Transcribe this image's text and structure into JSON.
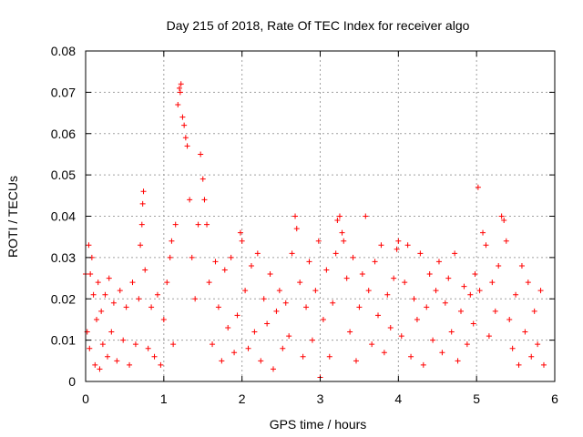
{
  "chart_data": {
    "type": "scatter",
    "title": "Day 215 of 2018, Rate Of TEC Index for receiver algo",
    "xlabel": "GPS time / hours",
    "ylabel": "ROTI / TECUs",
    "xlim": [
      0,
      6
    ],
    "ylim": [
      0,
      0.08
    ],
    "xticks": [
      "0",
      "1",
      "2",
      "3",
      "4",
      "5",
      "6"
    ],
    "yticks": [
      "0",
      "0.01",
      "0.02",
      "0.03",
      "0.04",
      "0.05",
      "0.06",
      "0.07",
      "0.08"
    ],
    "grid": true,
    "marker": "+",
    "color": "#ff0000",
    "series": [
      {
        "name": "ROTI",
        "points": [
          [
            0.0,
            0.026
          ],
          [
            0.02,
            0.012
          ],
          [
            0.04,
            0.033
          ],
          [
            0.05,
            0.008
          ],
          [
            0.06,
            0.026
          ],
          [
            0.08,
            0.03
          ],
          [
            0.1,
            0.021
          ],
          [
            0.12,
            0.004
          ],
          [
            0.14,
            0.015
          ],
          [
            0.16,
            0.024
          ],
          [
            0.18,
            0.003
          ],
          [
            0.2,
            0.017
          ],
          [
            0.22,
            0.009
          ],
          [
            0.25,
            0.021
          ],
          [
            0.28,
            0.006
          ],
          [
            0.3,
            0.025
          ],
          [
            0.33,
            0.012
          ],
          [
            0.36,
            0.019
          ],
          [
            0.4,
            0.005
          ],
          [
            0.44,
            0.022
          ],
          [
            0.48,
            0.01
          ],
          [
            0.52,
            0.018
          ],
          [
            0.56,
            0.004
          ],
          [
            0.6,
            0.024
          ],
          [
            0.64,
            0.009
          ],
          [
            0.68,
            0.02
          ],
          [
            0.7,
            0.033
          ],
          [
            0.72,
            0.038
          ],
          [
            0.73,
            0.043
          ],
          [
            0.74,
            0.046
          ],
          [
            0.76,
            0.027
          ],
          [
            0.8,
            0.008
          ],
          [
            0.84,
            0.018
          ],
          [
            0.88,
            0.006
          ],
          [
            0.92,
            0.021
          ],
          [
            0.96,
            0.004
          ],
          [
            1.0,
            0.015
          ],
          [
            1.04,
            0.024
          ],
          [
            1.08,
            0.03
          ],
          [
            1.1,
            0.034
          ],
          [
            1.12,
            0.009
          ],
          [
            1.15,
            0.038
          ],
          [
            1.18,
            0.067
          ],
          [
            1.2,
            0.071
          ],
          [
            1.21,
            0.07
          ],
          [
            1.22,
            0.072
          ],
          [
            1.24,
            0.064
          ],
          [
            1.26,
            0.062
          ],
          [
            1.28,
            0.059
          ],
          [
            1.3,
            0.057
          ],
          [
            1.33,
            0.044
          ],
          [
            1.36,
            0.03
          ],
          [
            1.4,
            0.02
          ],
          [
            1.44,
            0.038
          ],
          [
            1.47,
            0.055
          ],
          [
            1.5,
            0.049
          ],
          [
            1.52,
            0.044
          ],
          [
            1.55,
            0.038
          ],
          [
            1.58,
            0.024
          ],
          [
            1.62,
            0.009
          ],
          [
            1.66,
            0.029
          ],
          [
            1.7,
            0.018
          ],
          [
            1.74,
            0.005
          ],
          [
            1.78,
            0.027
          ],
          [
            1.82,
            0.013
          ],
          [
            1.86,
            0.03
          ],
          [
            1.9,
            0.007
          ],
          [
            1.94,
            0.016
          ],
          [
            1.98,
            0.036
          ],
          [
            2.0,
            0.034
          ],
          [
            2.04,
            0.022
          ],
          [
            2.08,
            0.008
          ],
          [
            2.12,
            0.028
          ],
          [
            2.16,
            0.012
          ],
          [
            2.2,
            0.031
          ],
          [
            2.24,
            0.005
          ],
          [
            2.28,
            0.02
          ],
          [
            2.32,
            0.014
          ],
          [
            2.36,
            0.026
          ],
          [
            2.4,
            0.003
          ],
          [
            2.44,
            0.017
          ],
          [
            2.48,
            0.022
          ],
          [
            2.52,
            0.008
          ],
          [
            2.56,
            0.019
          ],
          [
            2.6,
            0.011
          ],
          [
            2.64,
            0.031
          ],
          [
            2.68,
            0.04
          ],
          [
            2.7,
            0.037
          ],
          [
            2.74,
            0.024
          ],
          [
            2.78,
            0.006
          ],
          [
            2.82,
            0.018
          ],
          [
            2.86,
            0.029
          ],
          [
            2.9,
            0.01
          ],
          [
            2.94,
            0.022
          ],
          [
            2.98,
            0.034
          ],
          [
            3.0,
            0.001
          ],
          [
            3.04,
            0.015
          ],
          [
            3.08,
            0.027
          ],
          [
            3.12,
            0.006
          ],
          [
            3.16,
            0.019
          ],
          [
            3.2,
            0.031
          ],
          [
            3.22,
            0.039
          ],
          [
            3.25,
            0.04
          ],
          [
            3.28,
            0.036
          ],
          [
            3.3,
            0.034
          ],
          [
            3.34,
            0.025
          ],
          [
            3.38,
            0.012
          ],
          [
            3.42,
            0.03
          ],
          [
            3.46,
            0.005
          ],
          [
            3.5,
            0.018
          ],
          [
            3.54,
            0.026
          ],
          [
            3.58,
            0.04
          ],
          [
            3.62,
            0.022
          ],
          [
            3.66,
            0.009
          ],
          [
            3.7,
            0.029
          ],
          [
            3.74,
            0.016
          ],
          [
            3.78,
            0.033
          ],
          [
            3.82,
            0.007
          ],
          [
            3.86,
            0.021
          ],
          [
            3.9,
            0.013
          ],
          [
            3.94,
            0.025
          ],
          [
            3.98,
            0.032
          ],
          [
            4.0,
            0.034
          ],
          [
            4.04,
            0.011
          ],
          [
            4.08,
            0.024
          ],
          [
            4.12,
            0.033
          ],
          [
            4.16,
            0.006
          ],
          [
            4.2,
            0.02
          ],
          [
            4.24,
            0.015
          ],
          [
            4.28,
            0.031
          ],
          [
            4.32,
            0.004
          ],
          [
            4.36,
            0.018
          ],
          [
            4.4,
            0.026
          ],
          [
            4.44,
            0.01
          ],
          [
            4.48,
            0.022
          ],
          [
            4.52,
            0.029
          ],
          [
            4.56,
            0.007
          ],
          [
            4.6,
            0.019
          ],
          [
            4.64,
            0.025
          ],
          [
            4.68,
            0.012
          ],
          [
            4.72,
            0.031
          ],
          [
            4.76,
            0.005
          ],
          [
            4.8,
            0.017
          ],
          [
            4.84,
            0.023
          ],
          [
            4.88,
            0.009
          ],
          [
            4.92,
            0.021
          ],
          [
            4.96,
            0.014
          ],
          [
            4.98,
            0.026
          ],
          [
            5.02,
            0.047
          ],
          [
            5.04,
            0.022
          ],
          [
            5.08,
            0.036
          ],
          [
            5.12,
            0.033
          ],
          [
            5.16,
            0.011
          ],
          [
            5.2,
            0.024
          ],
          [
            5.24,
            0.017
          ],
          [
            5.28,
            0.028
          ],
          [
            5.32,
            0.04
          ],
          [
            5.35,
            0.039
          ],
          [
            5.38,
            0.034
          ],
          [
            5.42,
            0.015
          ],
          [
            5.46,
            0.008
          ],
          [
            5.5,
            0.021
          ],
          [
            5.54,
            0.004
          ],
          [
            5.58,
            0.028
          ],
          [
            5.62,
            0.012
          ],
          [
            5.66,
            0.024
          ],
          [
            5.7,
            0.006
          ],
          [
            5.74,
            0.017
          ],
          [
            5.78,
            0.009
          ],
          [
            5.82,
            0.022
          ],
          [
            5.86,
            0.004
          ]
        ]
      }
    ]
  }
}
